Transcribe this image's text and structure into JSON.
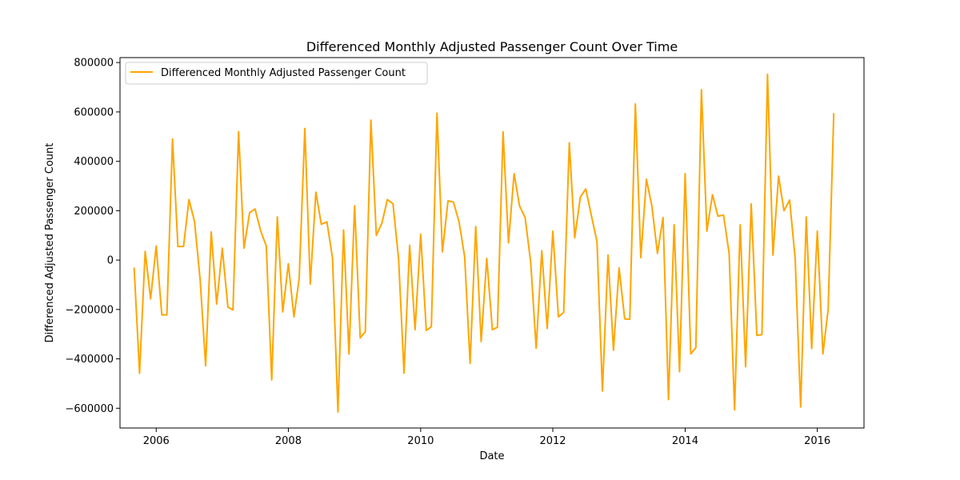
{
  "chart_data": {
    "type": "line",
    "title": "Differenced Monthly Adjusted Passenger Count Over Time",
    "xlabel": "Date",
    "ylabel": "Differenced Adjusted Passenger Count",
    "xlim": [
      "2005-06-15",
      "2016-09-15"
    ],
    "ylim": [
      -680000,
      820000
    ],
    "x_ticks": [
      {
        "date": "2006-01-01",
        "label": "2006"
      },
      {
        "date": "2008-01-01",
        "label": "2008"
      },
      {
        "date": "2010-01-01",
        "label": "2010"
      },
      {
        "date": "2012-01-01",
        "label": "2012"
      },
      {
        "date": "2014-01-01",
        "label": "2014"
      },
      {
        "date": "2016-01-01",
        "label": "2016"
      }
    ],
    "y_ticks": [
      {
        "value": 800000,
        "label": "800000"
      },
      {
        "value": 600000,
        "label": "600000"
      },
      {
        "value": 400000,
        "label": "400000"
      },
      {
        "value": 200000,
        "label": "200000"
      },
      {
        "value": 0,
        "label": "0"
      },
      {
        "value": -200000,
        "label": "−200000"
      },
      {
        "value": -400000,
        "label": "−400000"
      },
      {
        "value": -600000,
        "label": "−600000"
      }
    ],
    "grid": false,
    "legend_position": "upper-left",
    "series": [
      {
        "name": "Differenced Monthly Adjusted Passenger Count",
        "color": "#ffa500",
        "points": [
          [
            "2005-09-01",
            -30000
          ],
          [
            "2005-10-01",
            -458000
          ],
          [
            "2005-11-01",
            35000
          ],
          [
            "2005-12-01",
            -157000
          ],
          [
            "2006-01-01",
            57000
          ],
          [
            "2006-02-01",
            -222000
          ],
          [
            "2006-03-01",
            -222000
          ],
          [
            "2006-04-01",
            490000
          ],
          [
            "2006-05-01",
            55000
          ],
          [
            "2006-06-01",
            55000
          ],
          [
            "2006-07-01",
            245000
          ],
          [
            "2006-08-01",
            155000
          ],
          [
            "2006-09-01",
            -82000
          ],
          [
            "2006-10-01",
            -428000
          ],
          [
            "2006-11-01",
            114000
          ],
          [
            "2006-12-01",
            -178000
          ],
          [
            "2007-01-01",
            48000
          ],
          [
            "2007-02-01",
            -190000
          ],
          [
            "2007-03-01",
            -202000
          ],
          [
            "2007-04-01",
            520000
          ],
          [
            "2007-05-01",
            48000
          ],
          [
            "2007-06-01",
            192000
          ],
          [
            "2007-07-01",
            207000
          ],
          [
            "2007-08-01",
            118000
          ],
          [
            "2007-09-01",
            57000
          ],
          [
            "2007-10-01",
            -485000
          ],
          [
            "2007-11-01",
            175000
          ],
          [
            "2007-12-01",
            -210000
          ],
          [
            "2008-01-01",
            -15000
          ],
          [
            "2008-02-01",
            -230000
          ],
          [
            "2008-03-01",
            -72000
          ],
          [
            "2008-04-01",
            533000
          ],
          [
            "2008-05-01",
            -97000
          ],
          [
            "2008-06-01",
            275000
          ],
          [
            "2008-07-01",
            145000
          ],
          [
            "2008-08-01",
            155000
          ],
          [
            "2008-09-01",
            8000
          ],
          [
            "2008-10-01",
            -615000
          ],
          [
            "2008-11-01",
            122000
          ],
          [
            "2008-12-01",
            -380000
          ],
          [
            "2009-01-01",
            220000
          ],
          [
            "2009-02-01",
            -315000
          ],
          [
            "2009-03-01",
            -290000
          ],
          [
            "2009-04-01",
            567000
          ],
          [
            "2009-05-01",
            100000
          ],
          [
            "2009-06-01",
            150000
          ],
          [
            "2009-07-01",
            245000
          ],
          [
            "2009-08-01",
            228000
          ],
          [
            "2009-09-01",
            5000
          ],
          [
            "2009-10-01",
            -458000
          ],
          [
            "2009-11-01",
            60000
          ],
          [
            "2009-12-01",
            -282000
          ],
          [
            "2010-01-01",
            105000
          ],
          [
            "2010-02-01",
            -285000
          ],
          [
            "2010-03-01",
            -270000
          ],
          [
            "2010-04-01",
            595000
          ],
          [
            "2010-05-01",
            33000
          ],
          [
            "2010-06-01",
            240000
          ],
          [
            "2010-07-01",
            235000
          ],
          [
            "2010-08-01",
            155000
          ],
          [
            "2010-09-01",
            13000
          ],
          [
            "2010-10-01",
            -418000
          ],
          [
            "2010-11-01",
            136000
          ],
          [
            "2010-12-01",
            -330000
          ],
          [
            "2011-01-01",
            7000
          ],
          [
            "2011-02-01",
            -282000
          ],
          [
            "2011-03-01",
            -272000
          ],
          [
            "2011-04-01",
            520000
          ],
          [
            "2011-05-01",
            70000
          ],
          [
            "2011-06-01",
            350000
          ],
          [
            "2011-07-01",
            220000
          ],
          [
            "2011-08-01",
            172000
          ],
          [
            "2011-09-01",
            -10000
          ],
          [
            "2011-10-01",
            -357000
          ],
          [
            "2011-11-01",
            38000
          ],
          [
            "2011-12-01",
            -277000
          ],
          [
            "2012-01-01",
            117000
          ],
          [
            "2012-02-01",
            -230000
          ],
          [
            "2012-03-01",
            -212000
          ],
          [
            "2012-04-01",
            475000
          ],
          [
            "2012-05-01",
            90000
          ],
          [
            "2012-06-01",
            255000
          ],
          [
            "2012-07-01",
            288000
          ],
          [
            "2012-08-01",
            180000
          ],
          [
            "2012-09-01",
            75000
          ],
          [
            "2012-10-01",
            -530000
          ],
          [
            "2012-11-01",
            20000
          ],
          [
            "2012-12-01",
            -365000
          ],
          [
            "2013-01-01",
            -32000
          ],
          [
            "2013-02-01",
            -238000
          ],
          [
            "2013-03-01",
            -240000
          ],
          [
            "2013-04-01",
            632000
          ],
          [
            "2013-05-01",
            10000
          ],
          [
            "2013-06-01",
            327000
          ],
          [
            "2013-07-01",
            220000
          ],
          [
            "2013-08-01",
            27000
          ],
          [
            "2013-09-01",
            172000
          ],
          [
            "2013-10-01",
            -565000
          ],
          [
            "2013-11-01",
            143000
          ],
          [
            "2013-12-01",
            -452000
          ],
          [
            "2014-01-01",
            350000
          ],
          [
            "2014-02-01",
            -380000
          ],
          [
            "2014-03-01",
            -355000
          ],
          [
            "2014-04-01",
            690000
          ],
          [
            "2014-05-01",
            117000
          ],
          [
            "2014-06-01",
            265000
          ],
          [
            "2014-07-01",
            178000
          ],
          [
            "2014-08-01",
            182000
          ],
          [
            "2014-09-01",
            27000
          ],
          [
            "2014-10-01",
            -607000
          ],
          [
            "2014-11-01",
            143000
          ],
          [
            "2014-12-01",
            -432000
          ],
          [
            "2015-01-01",
            228000
          ],
          [
            "2015-02-01",
            -305000
          ],
          [
            "2015-03-01",
            -302000
          ],
          [
            "2015-04-01",
            752000
          ],
          [
            "2015-05-01",
            20000
          ],
          [
            "2015-06-01",
            340000
          ],
          [
            "2015-07-01",
            200000
          ],
          [
            "2015-08-01",
            243000
          ],
          [
            "2015-09-01",
            5000
          ],
          [
            "2015-10-01",
            -595000
          ],
          [
            "2015-11-01",
            175000
          ],
          [
            "2015-12-01",
            -358000
          ],
          [
            "2016-01-01",
            117000
          ],
          [
            "2016-02-01",
            -380000
          ],
          [
            "2016-03-01",
            -200000
          ],
          [
            "2016-04-01",
            595000
          ]
        ]
      }
    ]
  }
}
